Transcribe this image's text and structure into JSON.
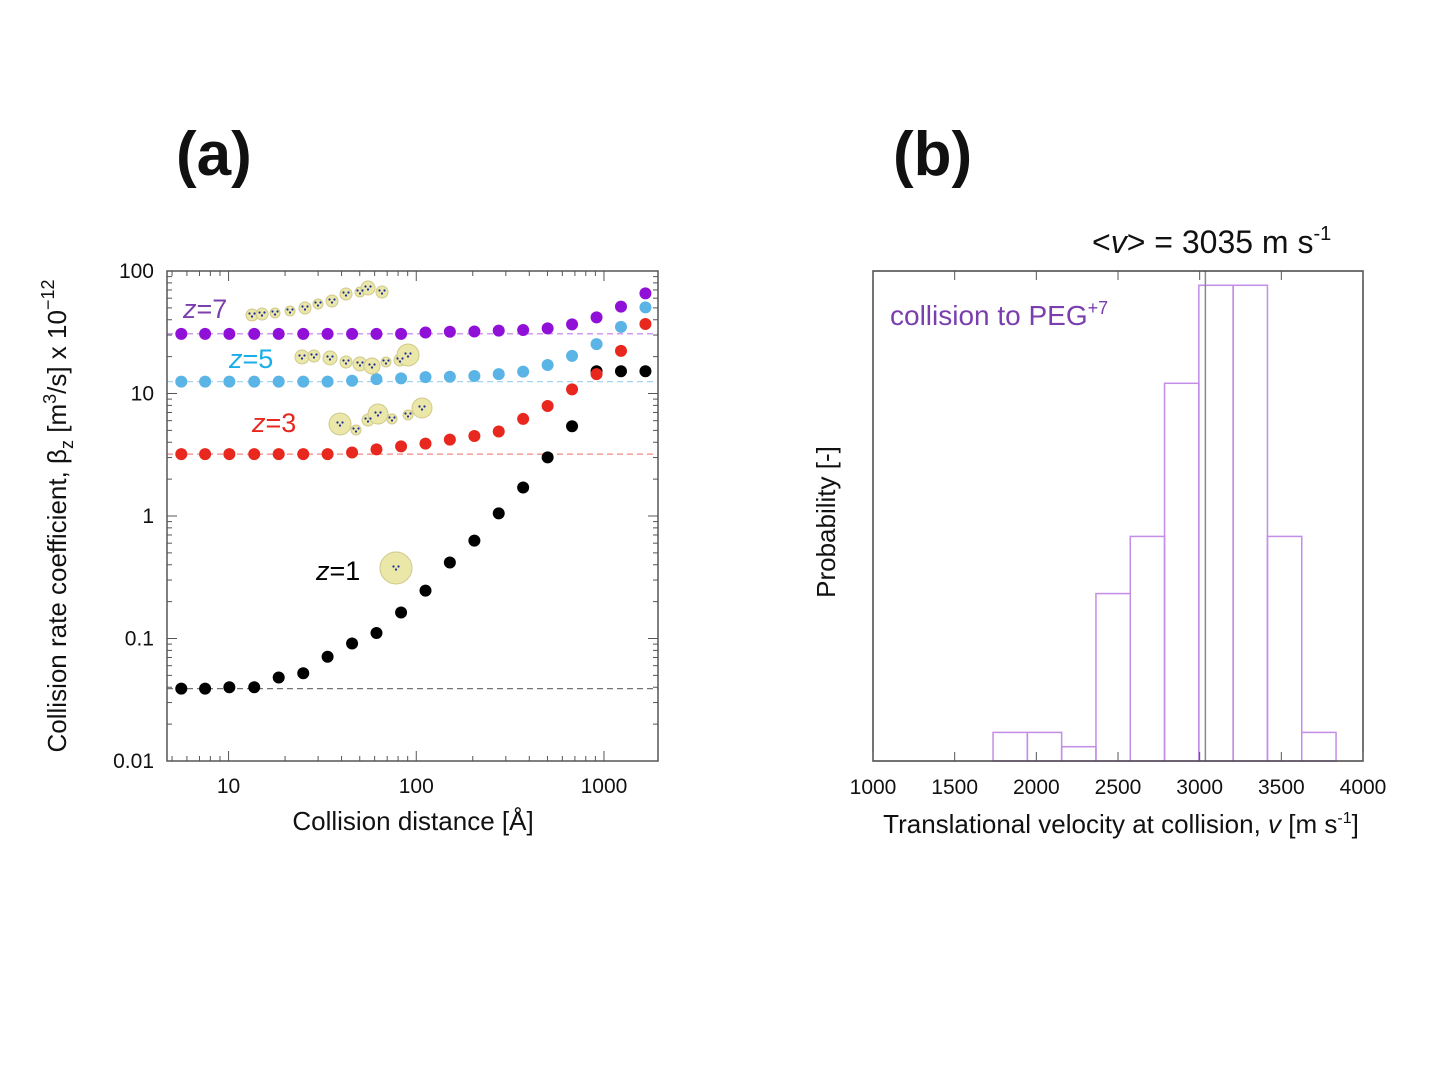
{
  "panel_a": {
    "label": "(a)"
  },
  "panel_b": {
    "label": "(b)"
  },
  "chart_data": [
    {
      "type": "scatter",
      "xscale": "log",
      "yscale": "log",
      "xlim": [
        4.7,
        1940
      ],
      "ylim": [
        0.01,
        100
      ],
      "xticks": [
        "10",
        "100",
        "1000"
      ],
      "yticks": [
        "0.01",
        "0.1",
        "1",
        "10",
        "100"
      ],
      "xlabel": "Collision distance [Å]",
      "ylabel": {
        "main": "Collision rate coefficient, β",
        "sub": "z",
        "mid": " [m",
        "sup1": "3",
        "end": "/s] x 10",
        "sup2": "−12"
      },
      "grid": false,
      "x": [
        5.6,
        7.5,
        10.1,
        13.7,
        18.5,
        25.0,
        33.7,
        45.5,
        61.4,
        83,
        112,
        151,
        204,
        275,
        371,
        501,
        676,
        913,
        1232,
        1663
      ],
      "series": [
        {
          "name": "z=1",
          "label_prefix": "z",
          "label_suffix": "=1",
          "color": "#000000",
          "label_color": "#000000",
          "baseline": 0.039,
          "values": [
            0.039,
            0.039,
            0.04,
            0.04,
            0.048,
            0.052,
            0.071,
            0.091,
            0.111,
            0.163,
            0.246,
            0.417,
            0.63,
            1.05,
            1.71,
            3.01,
            5.4,
            15.2,
            15.2,
            15.2
          ]
        },
        {
          "name": "z=3",
          "label_prefix": "z",
          "label_suffix": "=3",
          "color": "#e8281e",
          "label_color": "#e8281e",
          "baseline": 3.2,
          "values": [
            3.2,
            3.2,
            3.2,
            3.2,
            3.2,
            3.2,
            3.2,
            3.3,
            3.5,
            3.7,
            3.9,
            4.2,
            4.5,
            4.9,
            6.2,
            7.9,
            10.8,
            14.4,
            22.3,
            36.9
          ]
        },
        {
          "name": "z=5",
          "label_prefix": "z",
          "label_suffix": "=5",
          "color": "#5ab4e5",
          "label_color": "#1aaee8",
          "baseline": 12.5,
          "values": [
            12.5,
            12.5,
            12.5,
            12.5,
            12.5,
            12.5,
            12.5,
            12.7,
            13.1,
            13.3,
            13.6,
            13.7,
            13.9,
            14.4,
            15.1,
            17.1,
            20.3,
            25.3,
            35.0,
            50.5
          ]
        },
        {
          "name": "z=7",
          "label_prefix": "z",
          "label_suffix": "=7",
          "color": "#9010d8",
          "label_color": "#7b3fae",
          "baseline": 30.7,
          "values": [
            30.7,
            30.7,
            30.7,
            30.7,
            30.7,
            30.7,
            30.7,
            30.7,
            30.7,
            30.7,
            31.5,
            31.9,
            32.1,
            32.6,
            33.0,
            34.0,
            36.7,
            41.8,
            51.2,
            65.7
          ]
        }
      ]
    },
    {
      "type": "bar",
      "subtype": "histogram",
      "xlim": [
        1000,
        4000
      ],
      "ylim": [
        0,
        0.24
      ],
      "xticks": [
        "1000",
        "1500",
        "2000",
        "2500",
        "3000",
        "3500",
        "4000"
      ],
      "xlabel": {
        "main": "Translational velocity at collision, ",
        "var": "v",
        "unit_pre": " [m s",
        "sup": "-1",
        "unit_post": "]"
      },
      "ylabel": "Probability [-]",
      "grid": false,
      "bin_edges": [
        1735,
        1945,
        2155,
        2365,
        2575,
        2785,
        2995,
        3205,
        3415,
        3625,
        3835
      ],
      "values": [
        0.014,
        0.014,
        0.007,
        0.082,
        0.11,
        0.185,
        0.233,
        0.233,
        0.11,
        0.014
      ],
      "bar_color": "#c48de8",
      "mean": 3035,
      "mean_color": "#888888",
      "mean_label": {
        "pre": "<",
        "var": "v",
        "post": "> = 3035 m s",
        "sup": "-1"
      },
      "annotation": {
        "text": "collision to PEG",
        "sup": "+7",
        "color": "#7a3fae"
      }
    }
  ]
}
